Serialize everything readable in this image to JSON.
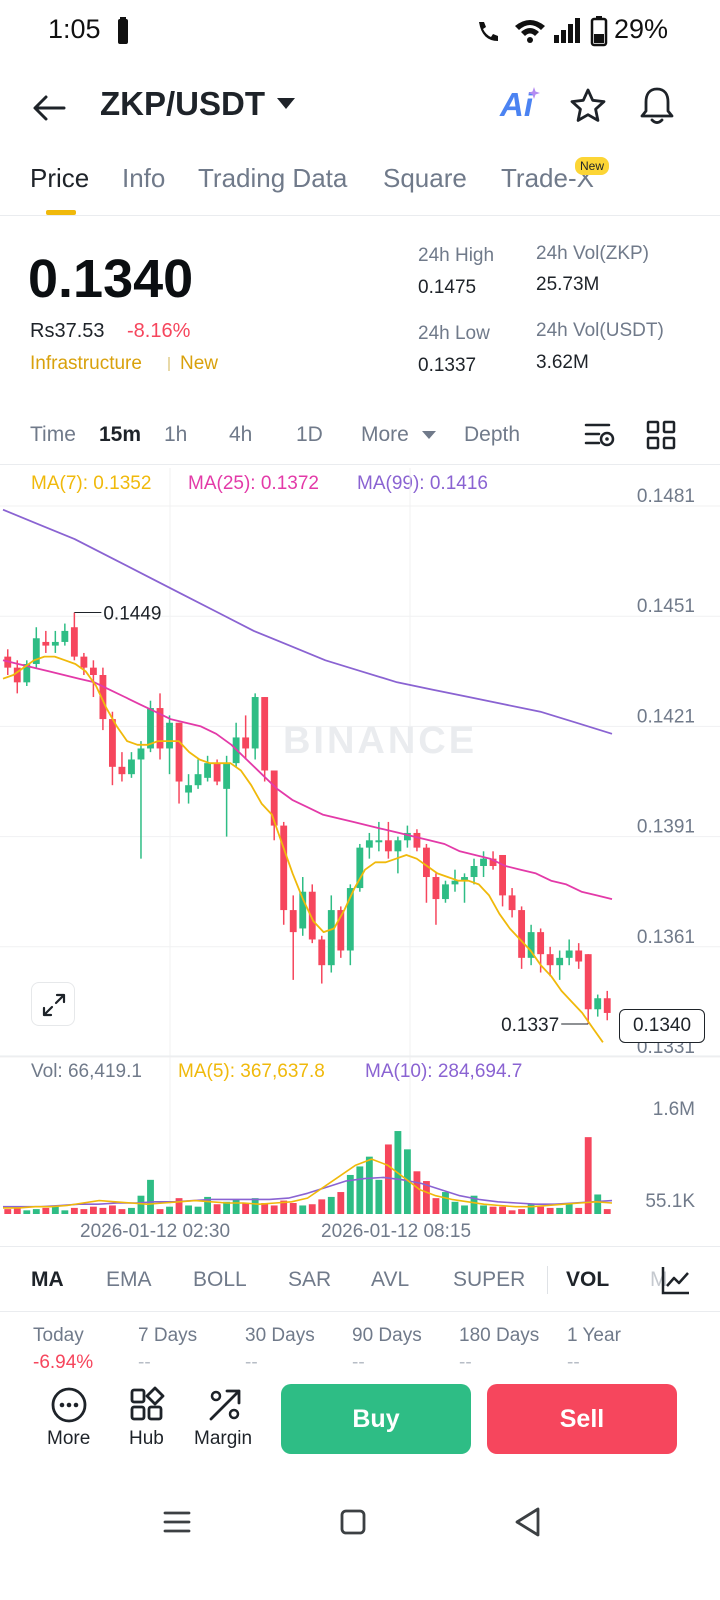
{
  "status_bar": {
    "time": "1:05",
    "battery_pct": "29%"
  },
  "header": {
    "pair": "ZKP/USDT",
    "ai_label": "Ai"
  },
  "tabs": [
    {
      "label": "Price",
      "active": true
    },
    {
      "label": "Info",
      "active": false
    },
    {
      "label": "Trading Data",
      "active": false
    },
    {
      "label": "Square",
      "active": false
    },
    {
      "label": "Trade-X",
      "active": false
    }
  ],
  "new_badge": "New",
  "price": {
    "last": "0.1340",
    "fiat": "Rs37.53",
    "change_pct": "-8.16%",
    "tags": [
      "Infrastructure",
      "New"
    ]
  },
  "stats": {
    "high_label": "24h High",
    "high": "0.1475",
    "low_label": "24h Low",
    "low": "0.1337",
    "vol_base_label": "24h Vol(ZKP)",
    "vol_base": "25.73M",
    "vol_quote_label": "24h Vol(USDT)",
    "vol_quote": "3.62M"
  },
  "intervals": {
    "items": [
      "Time",
      "15m",
      "1h",
      "4h",
      "1D",
      "More",
      "Depth"
    ],
    "active": "15m"
  },
  "ma_legend": {
    "ma7": "MA(7): 0.1352",
    "ma25": "MA(25): 0.1372",
    "ma99": "MA(99): 0.1416"
  },
  "colors": {
    "up": "#2ebd85",
    "down": "#f6465d",
    "ma7": "#f0b90b",
    "ma25": "#e33aa8",
    "ma99": "#8a63d2",
    "accent": "#fcd535"
  },
  "chart_data": {
    "type": "candlestick",
    "interval": "15m",
    "y_ticks": [
      "0.1481",
      "0.1451",
      "0.1421",
      "0.1391",
      "0.1361",
      "0.1331"
    ],
    "ylim": [
      0.1331,
      0.1481
    ],
    "high_marker": "0.1449",
    "low_marker": "0.1337",
    "last_price_tag": "0.1340",
    "watermark": "BINANCE",
    "x_labels": [
      "2026-01-12 02:30",
      "2026-01-12 08:15"
    ],
    "candles": [
      [
        0.1437,
        0.1439,
        0.1432,
        0.1434
      ],
      [
        0.1434,
        0.1436,
        0.1427,
        0.143
      ],
      [
        0.143,
        0.1436,
        0.1429,
        0.1435
      ],
      [
        0.1435,
        0.1445,
        0.1434,
        0.1442
      ],
      [
        0.1441,
        0.1444,
        0.1438,
        0.144
      ],
      [
        0.144,
        0.1444,
        0.1438,
        0.1441
      ],
      [
        0.1441,
        0.1446,
        0.144,
        0.1444
      ],
      [
        0.1445,
        0.1449,
        0.1436,
        0.1437
      ],
      [
        0.1437,
        0.1438,
        0.1432,
        0.1434
      ],
      [
        0.1434,
        0.1436,
        0.1426,
        0.1432
      ],
      [
        0.1432,
        0.1434,
        0.1417,
        0.142
      ],
      [
        0.142,
        0.1422,
        0.1402,
        0.1407
      ],
      [
        0.1407,
        0.1411,
        0.1403,
        0.1405
      ],
      [
        0.1405,
        0.1411,
        0.1404,
        0.1409
      ],
      [
        0.1409,
        0.1414,
        0.1382,
        0.1412
      ],
      [
        0.1412,
        0.1425,
        0.1411,
        0.1423
      ],
      [
        0.1423,
        0.1427,
        0.1409,
        0.1412
      ],
      [
        0.1412,
        0.1421,
        0.1405,
        0.1419
      ],
      [
        0.1419,
        0.1419,
        0.1397,
        0.1403
      ],
      [
        0.14,
        0.1405,
        0.1397,
        0.1402
      ],
      [
        0.1402,
        0.1409,
        0.1401,
        0.1405
      ],
      [
        0.1404,
        0.141,
        0.1403,
        0.1408
      ],
      [
        0.1408,
        0.1409,
        0.1402,
        0.1403
      ],
      [
        0.1401,
        0.141,
        0.1388,
        0.1408
      ],
      [
        0.1408,
        0.1419,
        0.1407,
        0.1415
      ],
      [
        0.1415,
        0.1421,
        0.1409,
        0.1412
      ],
      [
        0.1412,
        0.1427,
        0.1409,
        0.1426
      ],
      [
        0.1426,
        0.1426,
        0.1403,
        0.1406
      ],
      [
        0.1406,
        0.1406,
        0.1387,
        0.1391
      ],
      [
        0.1391,
        0.1392,
        0.1364,
        0.1368
      ],
      [
        0.1368,
        0.1372,
        0.1349,
        0.1362
      ],
      [
        0.1363,
        0.1377,
        0.1361,
        0.1373
      ],
      [
        0.1373,
        0.1375,
        0.1359,
        0.136
      ],
      [
        0.136,
        0.1361,
        0.1348,
        0.1353
      ],
      [
        0.1353,
        0.1372,
        0.1351,
        0.1368
      ],
      [
        0.1368,
        0.1369,
        0.1355,
        0.1357
      ],
      [
        0.1357,
        0.1375,
        0.1353,
        0.1374
      ],
      [
        0.1374,
        0.1386,
        0.1373,
        0.1385
      ],
      [
        0.1385,
        0.1389,
        0.1382,
        0.1387
      ],
      [
        0.1387,
        0.1392,
        0.1384,
        0.1387
      ],
      [
        0.1387,
        0.1392,
        0.1382,
        0.1384
      ],
      [
        0.1384,
        0.1388,
        0.1378,
        0.1387
      ],
      [
        0.1387,
        0.1391,
        0.1385,
        0.1389
      ],
      [
        0.1389,
        0.139,
        0.1384,
        0.1385
      ],
      [
        0.1385,
        0.1386,
        0.137,
        0.1377
      ],
      [
        0.1377,
        0.1378,
        0.1364,
        0.1371
      ],
      [
        0.1371,
        0.1376,
        0.137,
        0.1375
      ],
      [
        0.1375,
        0.1379,
        0.1373,
        0.1376
      ],
      [
        0.1376,
        0.1378,
        0.137,
        0.1377
      ],
      [
        0.1377,
        0.1382,
        0.1375,
        0.138
      ],
      [
        0.138,
        0.1384,
        0.1377,
        0.1382
      ],
      [
        0.1382,
        0.1384,
        0.1379,
        0.138
      ],
      [
        0.1383,
        0.1383,
        0.1369,
        0.1372
      ],
      [
        0.1372,
        0.1374,
        0.1366,
        0.1368
      ],
      [
        0.1368,
        0.1369,
        0.1352,
        0.1355
      ],
      [
        0.1355,
        0.1364,
        0.1353,
        0.1362
      ],
      [
        0.1362,
        0.1363,
        0.1351,
        0.1356
      ],
      [
        0.1356,
        0.1358,
        0.135,
        0.1353
      ],
      [
        0.1353,
        0.1357,
        0.1349,
        0.1355
      ],
      [
        0.1355,
        0.136,
        0.1353,
        0.1357
      ],
      [
        0.1357,
        0.1359,
        0.1352,
        0.1354
      ],
      [
        0.1356,
        0.1356,
        0.1337,
        0.1341
      ],
      [
        0.1341,
        0.1345,
        0.1339,
        0.1344
      ],
      [
        0.1344,
        0.1346,
        0.1338,
        0.134
      ]
    ],
    "ma7": [
      0.1431,
      0.1432,
      0.1434,
      0.1436,
      0.1437,
      0.1437,
      0.1436,
      0.1435,
      0.1433,
      0.1429,
      0.1423,
      0.1418,
      0.1414,
      0.1413,
      0.1413,
      0.1414,
      0.1414,
      0.1414,
      0.1411,
      0.1409,
      0.1408,
      0.1408,
      0.1408,
      0.1406,
      0.1402,
      0.1397,
      0.1394,
      0.1386,
      0.1378,
      0.1371,
      0.1365,
      0.1362,
      0.1363,
      0.1368,
      0.1374,
      0.1379,
      0.1381,
      0.1381,
      0.1382,
      0.1383,
      0.1382,
      0.138,
      0.1378,
      0.1377,
      0.1376,
      0.1376,
      0.1375,
      0.1372,
      0.1367,
      0.1363,
      0.136,
      0.1357,
      0.1353,
      0.135,
      0.1346,
      0.1343,
      0.134,
      0.1336,
      0.1332
    ],
    "ma25": [
      0.1436,
      0.1435,
      0.1434,
      0.1433,
      0.1432,
      0.1431,
      0.143,
      0.1428,
      0.1426,
      0.1424,
      0.1422,
      0.142,
      0.1419,
      0.1418,
      0.1416,
      0.1413,
      0.1409,
      0.1405,
      0.1401,
      0.1398,
      0.1396,
      0.1394,
      0.1393,
      0.1392,
      0.1391,
      0.139,
      0.1389,
      0.1388,
      0.1387,
      0.1386,
      0.1384,
      0.1383,
      0.1382,
      0.138,
      0.1379,
      0.1378,
      0.1376,
      0.1375,
      0.1373,
      0.1372,
      0.1371
    ],
    "ma99": [
      0.1477,
      0.1473,
      0.1469,
      0.1464,
      0.1459,
      0.1454,
      0.1449,
      0.1444,
      0.144,
      0.1436,
      0.1433,
      0.143,
      0.1428,
      0.1426,
      0.1424,
      0.1422,
      0.1419,
      0.1416
    ]
  },
  "volume": {
    "vol_label": "Vol: 66,419.1",
    "ma5_label": "MA(5): 367,637.8",
    "ma10_label": "MA(10): 284,694.7",
    "y_ticks": [
      "1.6M",
      "55.1K"
    ],
    "bars": [
      0.04,
      0.06,
      0.03,
      0.04,
      0.05,
      0.06,
      0.03,
      0.05,
      0.04,
      0.06,
      0.05,
      0.07,
      0.04,
      0.05,
      0.15,
      0.28,
      0.04,
      0.06,
      0.13,
      0.07,
      0.06,
      0.14,
      0.08,
      0.1,
      0.12,
      0.09,
      0.13,
      0.09,
      0.07,
      0.11,
      0.09,
      0.07,
      0.08,
      0.12,
      0.14,
      0.18,
      0.32,
      0.39,
      0.47,
      0.28,
      0.57,
      0.68,
      0.53,
      0.35,
      0.27,
      0.13,
      0.18,
      0.1,
      0.07,
      0.15,
      0.07,
      0.06,
      0.06,
      0.03,
      0.04,
      0.08,
      0.06,
      0.05,
      0.05,
      0.09,
      0.05,
      0.63,
      0.16,
      0.04
    ],
    "ma5": [
      0.05,
      0.05,
      0.06,
      0.06,
      0.07,
      0.09,
      0.11,
      0.1,
      0.09,
      0.08,
      0.09,
      0.1,
      0.11,
      0.1,
      0.09,
      0.09,
      0.08,
      0.09,
      0.1,
      0.13,
      0.22,
      0.31,
      0.4,
      0.45,
      0.4,
      0.3,
      0.2,
      0.15,
      0.12,
      0.1,
      0.08,
      0.07,
      0.06,
      0.06,
      0.07,
      0.08,
      0.09,
      0.1,
      0.09
    ],
    "ma10": [
      0.06,
      0.06,
      0.06,
      0.07,
      0.08,
      0.08,
      0.09,
      0.09,
      0.1,
      0.1,
      0.11,
      0.12,
      0.12,
      0.12,
      0.12,
      0.13,
      0.17,
      0.22,
      0.27,
      0.29,
      0.3,
      0.28,
      0.25,
      0.2,
      0.15,
      0.12,
      0.1,
      0.09,
      0.08,
      0.08,
      0.09,
      0.1,
      0.11
    ]
  },
  "indicators": {
    "items": [
      "MA",
      "EMA",
      "BOLL",
      "SAR",
      "AVL",
      "SUPER",
      "VOL",
      "M"
    ],
    "active": [
      "MA",
      "VOL"
    ]
  },
  "periods": [
    {
      "label": "Today",
      "value": "-6.94%"
    },
    {
      "label": "7 Days",
      "value": "--"
    },
    {
      "label": "30 Days",
      "value": "--"
    },
    {
      "label": "90 Days",
      "value": "--"
    },
    {
      "label": "180 Days",
      "value": "--"
    },
    {
      "label": "1 Year",
      "value": "--"
    }
  ],
  "actions": {
    "more": "More",
    "hub": "Hub",
    "margin": "Margin",
    "buy": "Buy",
    "sell": "Sell"
  }
}
